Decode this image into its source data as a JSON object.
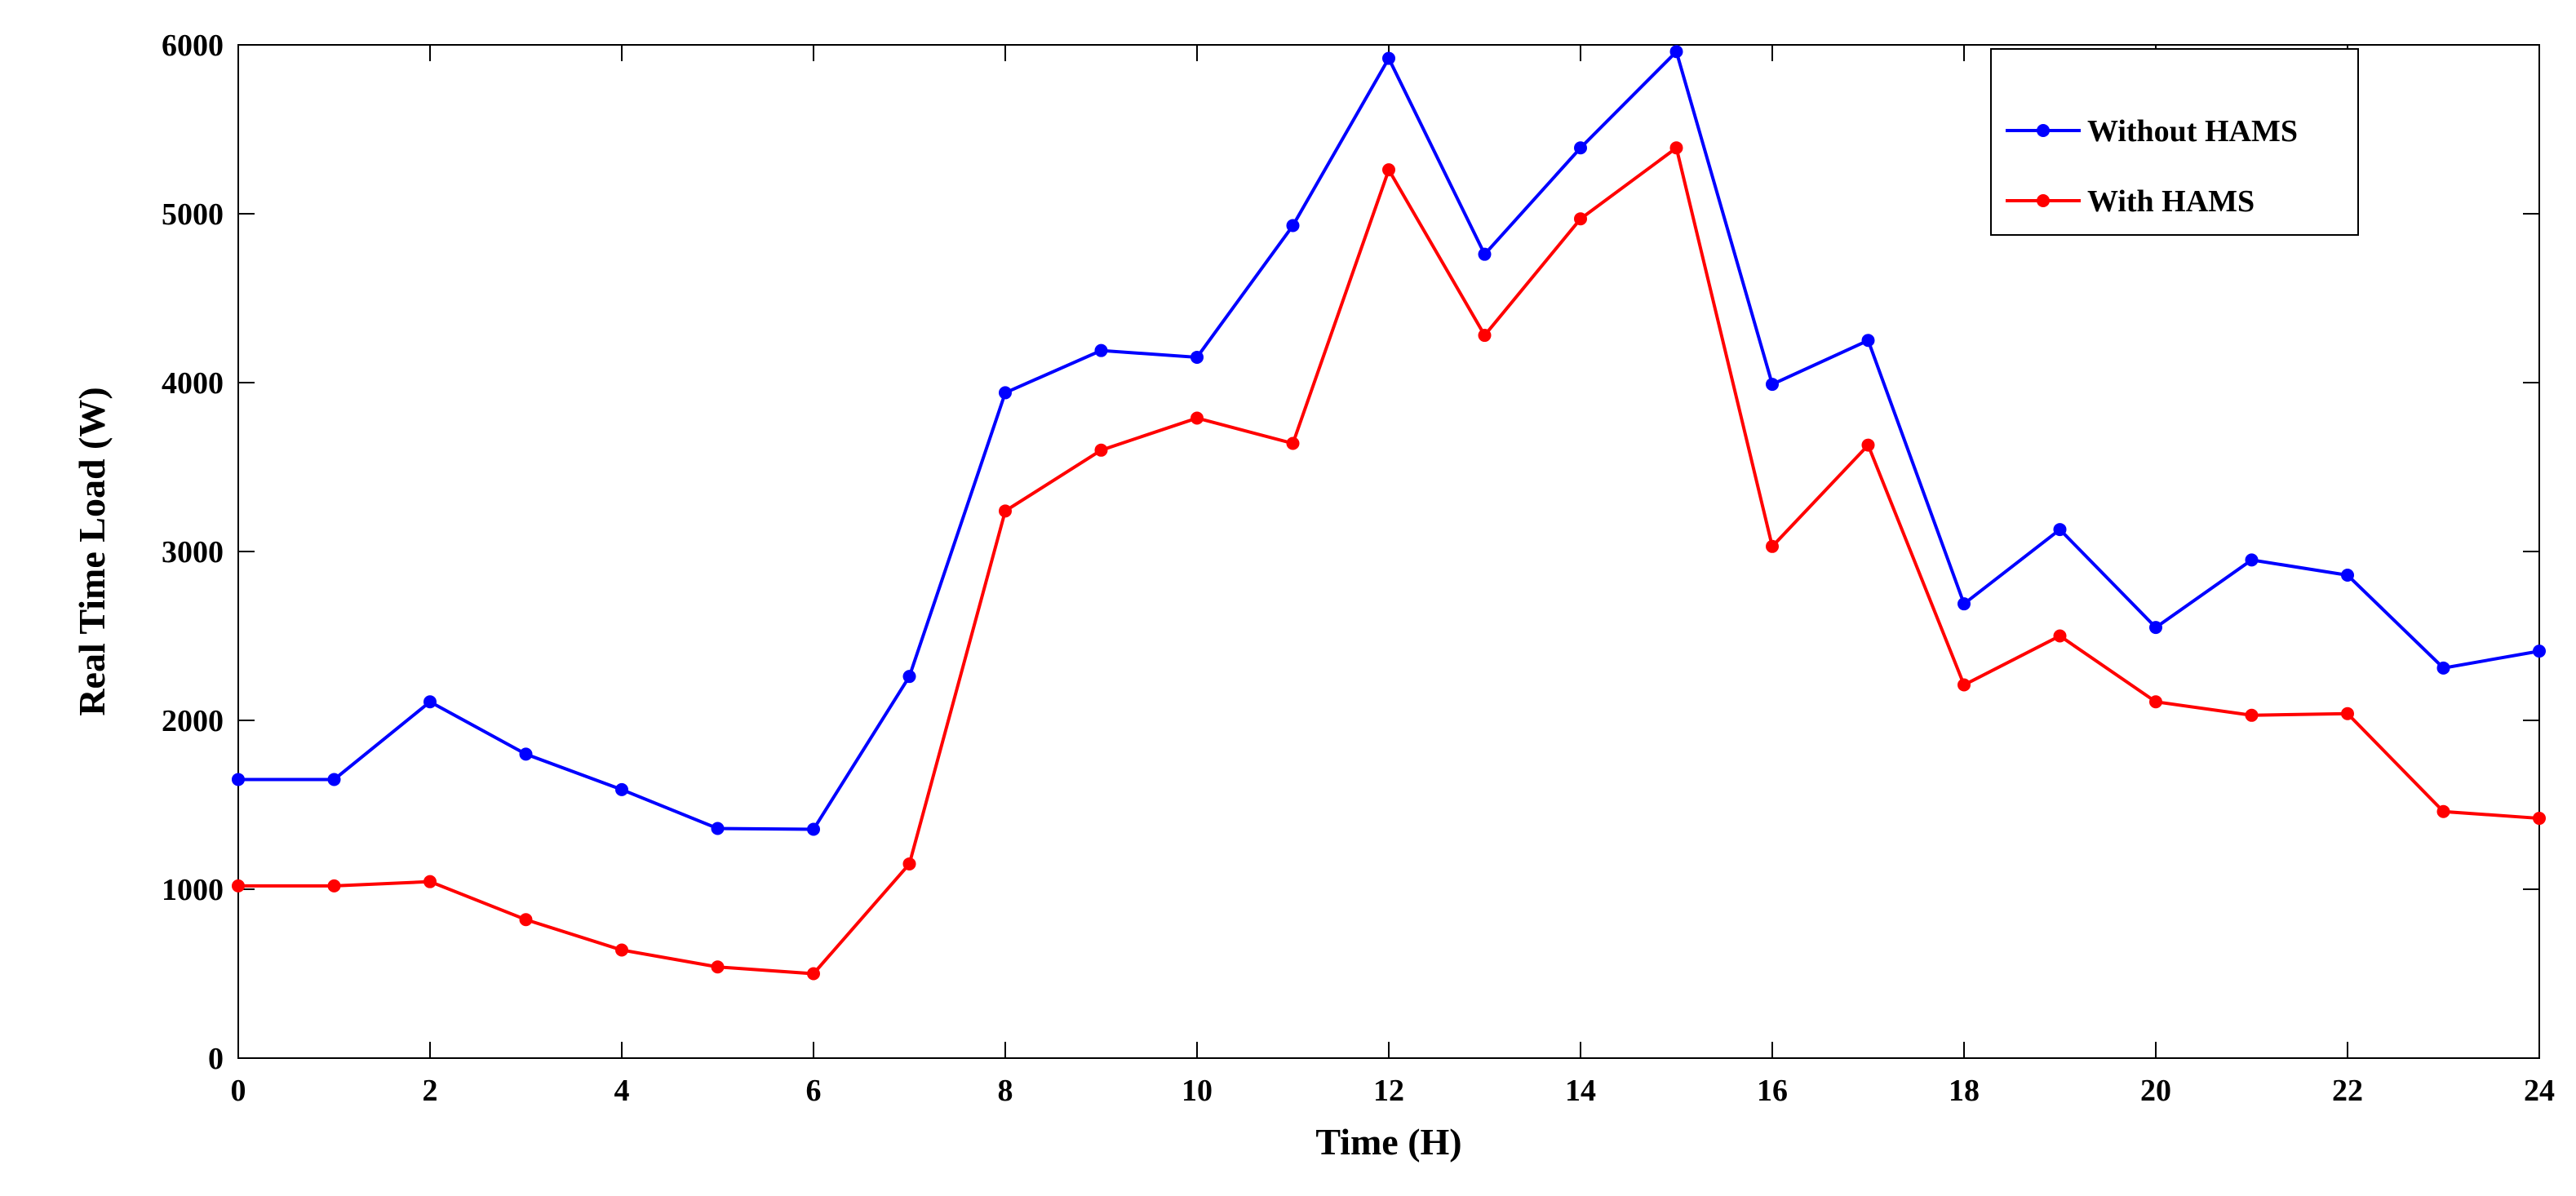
{
  "chart_data": {
    "type": "line",
    "title": "",
    "xlabel": "Time (H)",
    "ylabel": "Real Time Load (W)",
    "xlim": [
      0,
      24
    ],
    "ylim": [
      0,
      6000
    ],
    "xticks": [
      0,
      2,
      4,
      6,
      8,
      10,
      12,
      14,
      16,
      18,
      20,
      22,
      24
    ],
    "yticks": [
      0,
      1000,
      2000,
      3000,
      4000,
      5000,
      6000
    ],
    "grid": false,
    "legend_position": "top-right",
    "x": [
      0,
      1,
      2,
      3,
      4,
      5,
      6,
      7,
      8,
      9,
      10,
      11,
      12,
      13,
      14,
      15,
      16,
      17,
      18,
      19,
      20,
      21,
      22,
      23,
      24
    ],
    "series": [
      {
        "name": "Without HAMS",
        "color": "#0000ff",
        "values": [
          1650,
          1650,
          2110,
          1800,
          1590,
          1360,
          1355,
          2260,
          3940,
          4190,
          4150,
          4930,
          5920,
          4760,
          5390,
          5960,
          3990,
          4250,
          2690,
          3130,
          2550,
          2950,
          2860,
          2310,
          2410
        ]
      },
      {
        "name": "With HAMS",
        "color": "#ff0000",
        "values": [
          1020,
          1020,
          1045,
          820,
          640,
          540,
          500,
          1150,
          3240,
          3600,
          3790,
          3640,
          5260,
          4280,
          4970,
          5390,
          3030,
          3630,
          2210,
          2500,
          2110,
          2030,
          2040,
          1460,
          1420
        ]
      }
    ]
  }
}
